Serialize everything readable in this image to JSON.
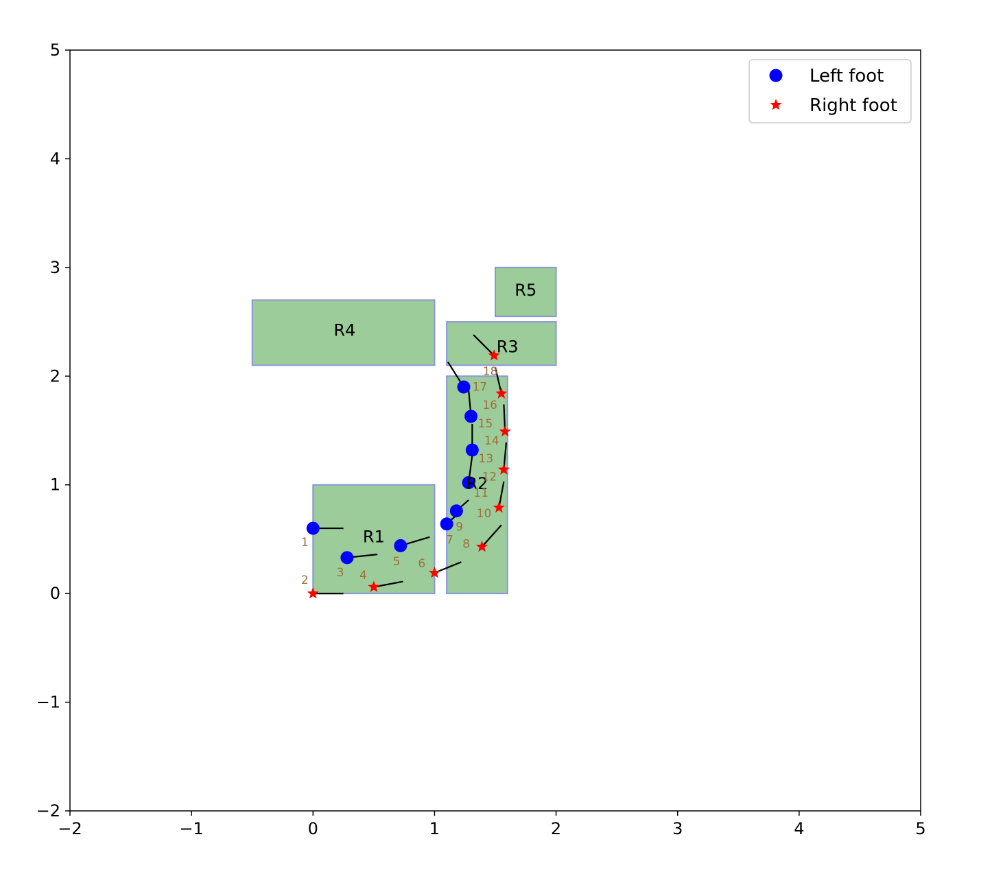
{
  "chart_data": {
    "type": "scatter",
    "title": "",
    "xlabel": "",
    "ylabel": "",
    "xlim": [
      -2,
      5
    ],
    "ylim": [
      -2,
      5
    ],
    "xticks": [
      "−2",
      "−1",
      "0",
      "1",
      "2",
      "3",
      "4",
      "5"
    ],
    "yticks": [
      "−2",
      "−1",
      "0",
      "1",
      "2",
      "3",
      "4",
      "5"
    ],
    "xtick_values": [
      -2,
      -1,
      0,
      1,
      2,
      3,
      4,
      5
    ],
    "ytick_values": [
      -2,
      -1,
      0,
      1,
      2,
      3,
      4,
      5
    ],
    "grid": false,
    "legend_position": "top-right",
    "regions": [
      {
        "label": "R1",
        "x_range": [
          0,
          1
        ],
        "y_range": [
          0,
          1
        ],
        "label_at": [
          0.5,
          0.47
        ]
      },
      {
        "label": "R2",
        "x_range": [
          1.1,
          1.6
        ],
        "y_range": [
          0,
          2
        ],
        "label_at": [
          1.35,
          0.96
        ]
      },
      {
        "label": "R3",
        "x_range": [
          1.1,
          2.0
        ],
        "y_range": [
          2.1,
          2.5
        ],
        "label_at": [
          1.6,
          2.22
        ]
      },
      {
        "label": "R4",
        "x_range": [
          -0.5,
          1.0
        ],
        "y_range": [
          2.1,
          2.7
        ],
        "label_at": [
          0.26,
          2.37
        ]
      },
      {
        "label": "R5",
        "x_range": [
          1.5,
          2.0
        ],
        "y_range": [
          2.55,
          3.0
        ],
        "label_at": [
          1.75,
          2.74
        ]
      }
    ],
    "series": [
      {
        "name": "Left foot",
        "marker": "circle",
        "color": "#0000ff",
        "points": [
          {
            "step": "1",
            "x": 0.0,
            "y": 0.6,
            "heading_end": [
              0.25,
              0.6
            ]
          },
          {
            "step": "3",
            "x": 0.28,
            "y": 0.33,
            "heading_end": [
              0.53,
              0.36
            ]
          },
          {
            "step": "5",
            "x": 0.72,
            "y": 0.44,
            "heading_end": [
              0.96,
              0.52
            ]
          },
          {
            "step": "7",
            "x": 1.1,
            "y": 0.64,
            "heading_end": [
              1.2,
              0.74
            ]
          },
          {
            "step": "9",
            "x": 1.18,
            "y": 0.76,
            "heading_end": [
              1.28,
              0.86
            ]
          },
          {
            "step": "11",
            "x": 1.28,
            "y": 1.02,
            "heading_end": [
              1.31,
              1.27
            ]
          },
          {
            "step": "13",
            "x": 1.31,
            "y": 1.32,
            "heading_end": [
              1.31,
              1.56
            ]
          },
          {
            "step": "15",
            "x": 1.3,
            "y": 1.63,
            "heading_end": [
              1.28,
              1.88
            ]
          },
          {
            "step": "17",
            "x": 1.24,
            "y": 1.9,
            "heading_end": [
              1.11,
              2.13
            ]
          }
        ]
      },
      {
        "name": "Right foot",
        "marker": "star",
        "color": "#ff0000",
        "points": [
          {
            "step": "2",
            "x": 0.0,
            "y": 0.0,
            "heading_end": [
              0.25,
              0.0
            ]
          },
          {
            "step": "4",
            "x": 0.5,
            "y": 0.06,
            "heading_end": [
              0.74,
              0.11
            ]
          },
          {
            "step": "6",
            "x": 1.0,
            "y": 0.19,
            "heading_end": [
              1.22,
              0.29
            ]
          },
          {
            "step": "8",
            "x": 1.39,
            "y": 0.43,
            "heading_end": [
              1.55,
              0.63
            ]
          },
          {
            "step": "10",
            "x": 1.53,
            "y": 0.79,
            "heading_end": [
              1.57,
              1.03
            ]
          },
          {
            "step": "12",
            "x": 1.57,
            "y": 1.14,
            "heading_end": [
              1.59,
              1.39
            ]
          },
          {
            "step": "14",
            "x": 1.58,
            "y": 1.49,
            "heading_end": [
              1.57,
              1.74
            ]
          },
          {
            "step": "16",
            "x": 1.55,
            "y": 1.84,
            "heading_end": [
              1.5,
              2.08
            ]
          },
          {
            "step": "18",
            "x": 1.49,
            "y": 2.19,
            "heading_end": [
              1.32,
              2.38
            ]
          }
        ]
      }
    ]
  }
}
